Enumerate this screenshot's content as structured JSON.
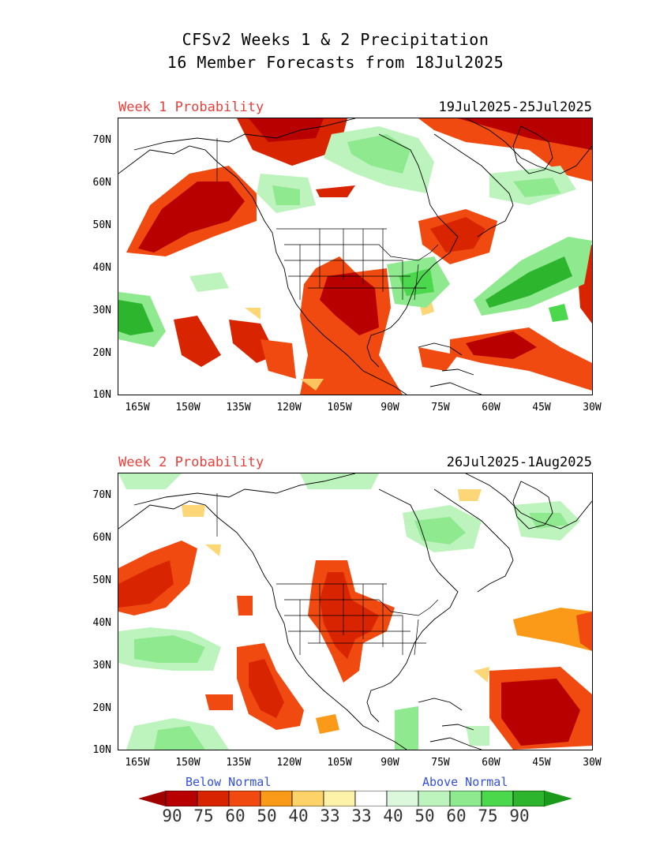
{
  "title": {
    "line1": "CFSv2 Weeks 1 & 2 Precipitation",
    "line2": "16 Member Forecasts from 18Jul2025"
  },
  "panels": [
    {
      "label": "Week 1 Probability",
      "dates": "19Jul2025-25Jul2025"
    },
    {
      "label": "Week 2 Probability",
      "dates": "26Jul2025-1Aug2025"
    }
  ],
  "axes": {
    "lat_labels": [
      "70N",
      "60N",
      "50N",
      "40N",
      "30N",
      "20N",
      "10N"
    ],
    "lon_labels": [
      "165W",
      "150W",
      "135W",
      "120W",
      "105W",
      "90W",
      "75W",
      "60W",
      "45W",
      "30W"
    ]
  },
  "legend": {
    "below_label": "Below Normal",
    "above_label": "Above Normal",
    "values": [
      "90",
      "75",
      "60",
      "50",
      "40",
      "33",
      "33",
      "40",
      "50",
      "60",
      "75",
      "90"
    ],
    "colors": [
      "#b80000",
      "#d92400",
      "#f04a10",
      "#fa9a18",
      "#fdd268",
      "#fdf2a8",
      "#ffffff",
      "#dcf8dc",
      "#bdf3bd",
      "#8fe98f",
      "#4cd84c",
      "#2db52d"
    ],
    "arrow_left_color": "#a00000",
    "arrow_right_color": "#1a9a1a"
  }
}
